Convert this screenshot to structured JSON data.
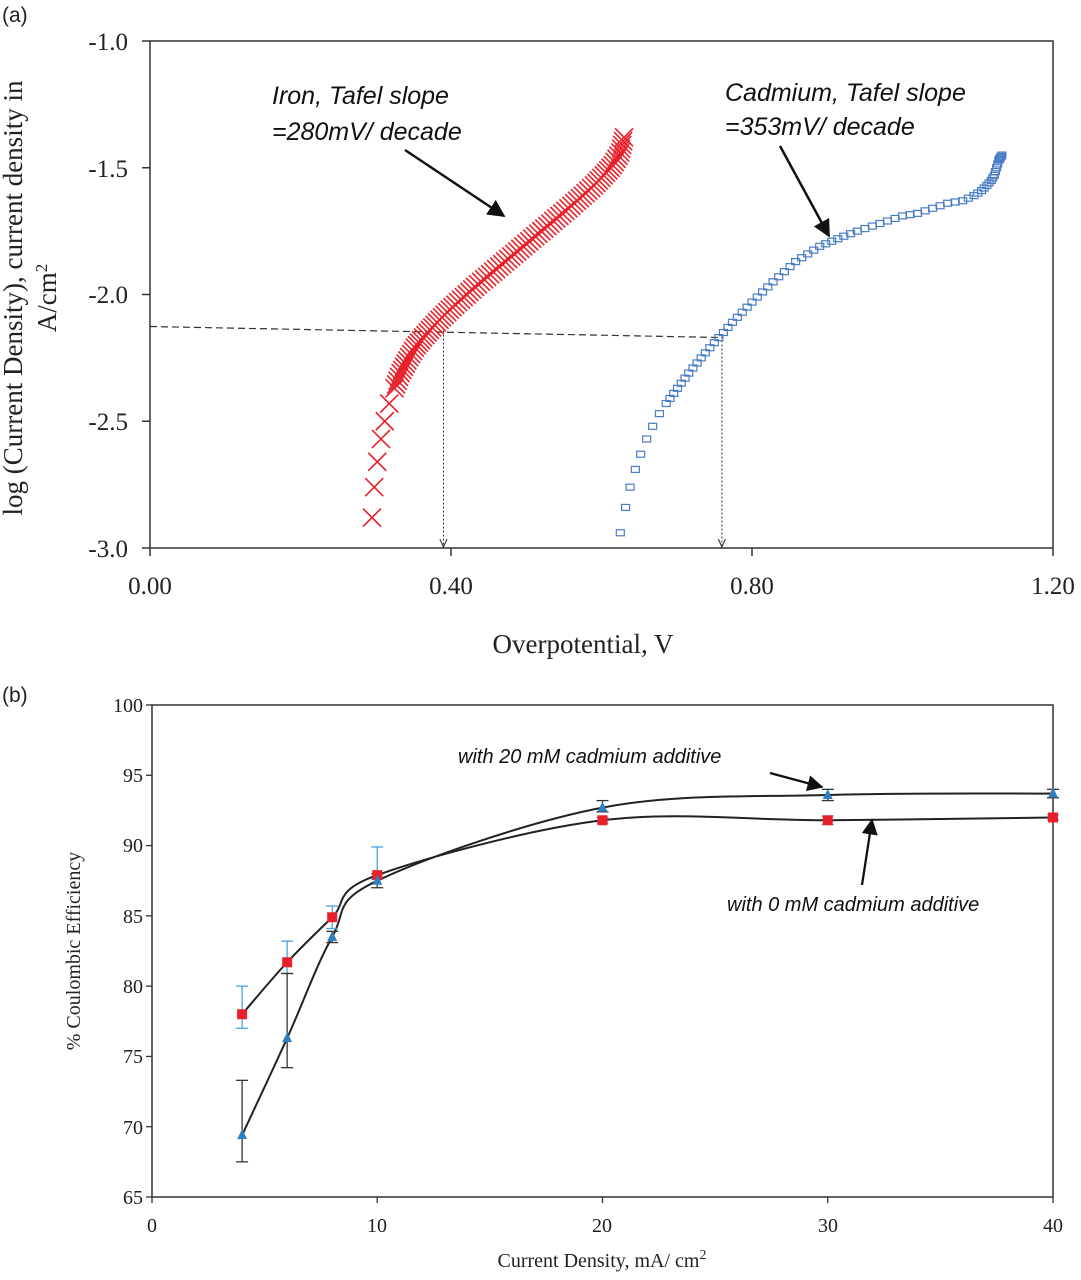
{
  "chart_data": [
    {
      "panel_label": "(a)",
      "type": "scatter",
      "xlabel": "Overpotential, V",
      "ylabel_line1": "log (Current Density), current density in",
      "ylabel_line2": "A/cm",
      "ylabel_sup": "2",
      "xlim": [
        0.0,
        1.2
      ],
      "ylim": [
        -3.0,
        -1.0
      ],
      "x_ticks": [
        "0.00",
        "0.40",
        "0.80",
        "1.20"
      ],
      "x_tick_values": [
        0.0,
        0.4,
        0.8,
        1.2
      ],
      "y_ticks": [
        "-1.0",
        "-1.5",
        "-2.0",
        "-2.5",
        "-3.0"
      ],
      "y_tick_values": [
        -1.0,
        -1.5,
        -2.0,
        -2.5,
        -3.0
      ],
      "series": [
        {
          "name": "Iron",
          "marker": "x",
          "color": "#e8202a",
          "x": [
            0.295,
            0.298,
            0.302,
            0.307,
            0.312,
            0.318,
            0.325,
            0.333,
            0.342,
            0.352,
            0.363,
            0.375,
            0.388,
            0.402,
            0.417,
            0.432,
            0.448,
            0.464,
            0.48,
            0.496,
            0.512,
            0.528,
            0.544,
            0.56,
            0.575,
            0.59,
            0.603,
            0.615,
            0.625,
            0.63
          ],
          "y": [
            -2.88,
            -2.76,
            -2.66,
            -2.57,
            -2.5,
            -2.43,
            -2.37,
            -2.31,
            -2.26,
            -2.21,
            -2.17,
            -2.13,
            -2.09,
            -2.05,
            -2.01,
            -1.97,
            -1.93,
            -1.89,
            -1.85,
            -1.81,
            -1.77,
            -1.73,
            -1.69,
            -1.65,
            -1.61,
            -1.57,
            -1.53,
            -1.49,
            -1.44,
            -1.38
          ]
        },
        {
          "name": "Cadmium",
          "marker": "square",
          "color": "#4a7bc4",
          "x": [
            0.625,
            0.632,
            0.638,
            0.645,
            0.652,
            0.66,
            0.668,
            0.677,
            0.686,
            0.696,
            0.706,
            0.716,
            0.727,
            0.738,
            0.75,
            0.762,
            0.774,
            0.787,
            0.8,
            0.814,
            0.828,
            0.843,
            0.858,
            0.874,
            0.89,
            0.906,
            0.922,
            0.94,
            0.96,
            0.98,
            1.0,
            1.02,
            1.04,
            1.06,
            1.08,
            1.095,
            1.105,
            1.112,
            1.118,
            1.122,
            1.125,
            1.128,
            1.13,
            1.132
          ],
          "y": [
            -2.94,
            -2.84,
            -2.76,
            -2.69,
            -2.63,
            -2.57,
            -2.52,
            -2.47,
            -2.43,
            -2.39,
            -2.35,
            -2.31,
            -2.27,
            -2.23,
            -2.19,
            -2.15,
            -2.11,
            -2.07,
            -2.03,
            -1.99,
            -1.95,
            -1.91,
            -1.87,
            -1.84,
            -1.81,
            -1.79,
            -1.77,
            -1.75,
            -1.73,
            -1.71,
            -1.69,
            -1.68,
            -1.66,
            -1.64,
            -1.63,
            -1.61,
            -1.59,
            -1.57,
            -1.55,
            -1.53,
            -1.5,
            -1.47,
            -1.46,
            -1.45
          ]
        }
      ],
      "reference_lines": {
        "horizontal_y": -2.15,
        "iron_drop_x": 0.39,
        "cadmium_drop_x": 0.76
      },
      "annotations": [
        {
          "line1": "Iron, Tafel slope",
          "line2": "=280mV/ decade"
        },
        {
          "line1": "Cadmium, Tafel slope",
          "line2": "=353mV/ decade"
        }
      ]
    },
    {
      "panel_label": "(b)",
      "type": "line",
      "xlabel": "Current Density, mA/ cm",
      "xlabel_sup": "2",
      "ylabel": "% Coulombic Efficiency",
      "xlim": [
        0,
        40
      ],
      "ylim": [
        65,
        100
      ],
      "x_ticks": [
        "0",
        "10",
        "20",
        "30",
        "40"
      ],
      "x_tick_values": [
        0,
        10,
        20,
        30,
        40
      ],
      "y_ticks": [
        "100",
        "95",
        "90",
        "85",
        "80",
        "75",
        "70",
        "65"
      ],
      "y_tick_values": [
        100,
        95,
        90,
        85,
        80,
        75,
        70,
        65
      ],
      "series": [
        {
          "name": "with 0 mM cadmium additive",
          "marker": "square",
          "color": "#e8202a",
          "x": [
            4,
            6,
            8,
            10,
            20,
            30,
            40
          ],
          "y": [
            78.0,
            81.7,
            84.9,
            87.9,
            91.8,
            91.8,
            92.0
          ],
          "err_low": [
            1.0,
            0.8,
            0.8,
            0.3,
            0.2,
            0.3,
            0.2
          ],
          "err_high": [
            2.0,
            1.5,
            0.8,
            2.0,
            0.2,
            0.3,
            0.2
          ],
          "err_color": "#4aa3df"
        },
        {
          "name": "with 20 mM cadmium additive",
          "marker": "triangle",
          "color": "#2f7fc0",
          "x": [
            4,
            6,
            8,
            10,
            20,
            30,
            40
          ],
          "y": [
            69.4,
            76.3,
            83.5,
            87.5,
            92.7,
            93.6,
            93.7
          ],
          "err_low": [
            1.9,
            2.1,
            0.4,
            0.5,
            0.3,
            0.4,
            0.3
          ],
          "err_high": [
            3.9,
            4.6,
            0.4,
            0.5,
            0.5,
            0.4,
            0.3
          ],
          "err_color": "#333333"
        }
      ],
      "annotations": [
        {
          "text": "with 20 mM cadmium additive"
        },
        {
          "text": "with 0 mM cadmium additive"
        }
      ]
    }
  ]
}
